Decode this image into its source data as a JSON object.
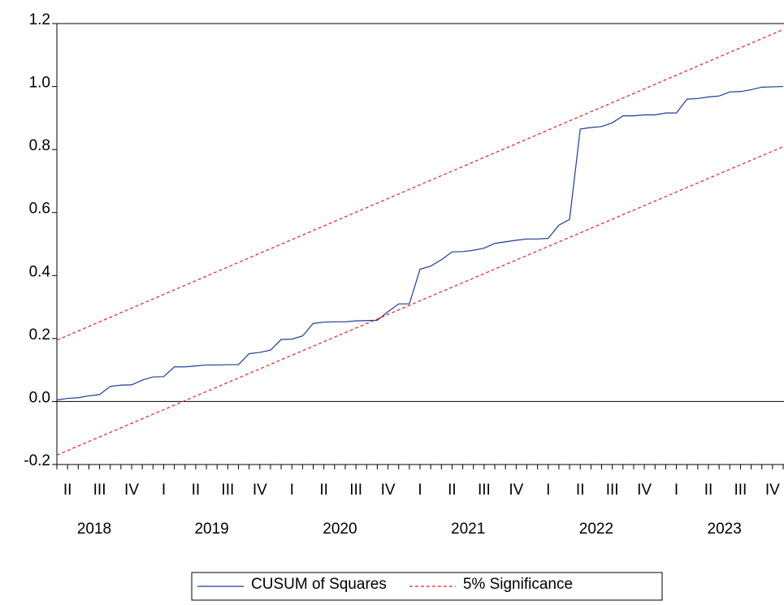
{
  "chart_data": {
    "type": "line",
    "categories": [
      null,
      "II",
      null,
      null,
      "III",
      null,
      null,
      "IV",
      null,
      null,
      "I",
      null,
      null,
      "II",
      null,
      null,
      "III",
      null,
      null,
      "IV",
      null,
      null,
      "I",
      null,
      null,
      "II",
      null,
      null,
      "III",
      null,
      null,
      "IV",
      null,
      null,
      "I",
      null,
      null,
      "II",
      null,
      null,
      "III",
      null,
      null,
      "IV",
      null,
      null,
      "I",
      null,
      null,
      "II",
      null,
      null,
      "III",
      null,
      null,
      "IV",
      null,
      null,
      "I",
      null,
      null,
      "II",
      null,
      null,
      "III",
      null,
      null,
      "IV",
      null
    ],
    "years": [
      null,
      null,
      null,
      "2018",
      null,
      null,
      null,
      null,
      null,
      null,
      null,
      null,
      null,
      null,
      "2019",
      null,
      null,
      null,
      null,
      null,
      null,
      null,
      null,
      null,
      null,
      null,
      "2020",
      null,
      null,
      null,
      null,
      null,
      null,
      null,
      null,
      null,
      null,
      null,
      "2021",
      null,
      null,
      null,
      null,
      null,
      null,
      null,
      null,
      null,
      null,
      null,
      "2022",
      null,
      null,
      null,
      null,
      null,
      null,
      null,
      null,
      null,
      null,
      null,
      "2023",
      null,
      null,
      null,
      null,
      null,
      null
    ],
    "series": [
      {
        "name": "CUSUM of Squares",
        "color": "#1f3c96",
        "dashed": false,
        "values": [
          0.005,
          0.01,
          0.012,
          0.018,
          0.022,
          0.048,
          0.052,
          0.053,
          0.068,
          0.078,
          0.079,
          0.11,
          0.11,
          0.113,
          0.116,
          0.116,
          0.117,
          0.117,
          0.152,
          0.156,
          0.163,
          0.197,
          0.198,
          0.208,
          0.248,
          0.252,
          0.253,
          0.253,
          0.256,
          0.257,
          0.258,
          0.285,
          0.31,
          0.31,
          0.42,
          0.43,
          0.45,
          0.475,
          0.476,
          0.48,
          0.487,
          0.502,
          0.507,
          0.512,
          0.516,
          0.516,
          0.518,
          0.56,
          0.578,
          0.865,
          0.87,
          0.873,
          0.885,
          0.907,
          0.907,
          0.91,
          0.91,
          0.916,
          0.916,
          0.96,
          0.962,
          0.967,
          0.97,
          0.983,
          0.984,
          0.99,
          0.998,
          0.999,
          1.0
        ]
      },
      {
        "name": "5% Significance",
        "color": "#e02424",
        "dashed": true,
        "values": [
          0.195,
          0.2095,
          0.224,
          0.2385,
          0.253,
          0.2675,
          0.282,
          0.2965,
          0.311,
          0.3255,
          0.34,
          0.3545,
          0.369,
          0.3835,
          0.398,
          0.4125,
          0.427,
          0.4415,
          0.456,
          0.4705,
          0.485,
          0.4995,
          0.514,
          0.5285,
          0.543,
          0.5575,
          0.572,
          0.5865,
          0.601,
          0.6155,
          0.63,
          0.6445,
          0.659,
          0.6735,
          0.688,
          0.7025,
          0.717,
          0.7315,
          0.746,
          0.7605,
          0.775,
          0.7895,
          0.804,
          0.8185,
          0.833,
          0.8475,
          0.862,
          0.8765,
          0.891,
          0.9055,
          0.92,
          0.9345,
          0.949,
          0.9635,
          0.978,
          0.9925,
          1.007,
          1.0215,
          1.036,
          1.0505,
          1.065,
          1.0795,
          1.094,
          1.1085,
          1.123,
          1.1375,
          1.152,
          1.1665,
          1.181
        ]
      },
      {
        "color": "#e02424",
        "dashed": true,
        "values": [
          -0.17,
          -0.1556,
          -0.1412,
          -0.1268,
          -0.1124,
          -0.098,
          -0.0836,
          -0.0692,
          -0.0548,
          -0.0404,
          -0.026,
          -0.0116,
          0.0028,
          0.0172,
          0.0316,
          0.046,
          0.0604,
          0.0748,
          0.0892,
          0.1036,
          0.118,
          0.1324,
          0.1468,
          0.1612,
          0.1756,
          0.19,
          0.2044,
          0.2188,
          0.2332,
          0.2476,
          0.262,
          0.2764,
          0.2908,
          0.3052,
          0.3196,
          0.334,
          0.3484,
          0.3628,
          0.3772,
          0.3916,
          0.406,
          0.4204,
          0.4348,
          0.4492,
          0.4636,
          0.478,
          0.4924,
          0.5068,
          0.5212,
          0.5356,
          0.55,
          0.5644,
          0.5788,
          0.5932,
          0.6076,
          0.622,
          0.6364,
          0.6508,
          0.6652,
          0.6796,
          0.694,
          0.7084,
          0.7228,
          0.7372,
          0.7516,
          0.766,
          0.7804,
          0.7948,
          0.8092
        ]
      }
    ],
    "ylim": [
      -0.2,
      1.2
    ],
    "yticks": [
      -0.2,
      {
        "value": 0,
        "label": "0.0"
      },
      0.2,
      0.4,
      0.6,
      0.8,
      {
        "value": 1,
        "label": "1.0"
      },
      1.2
    ],
    "zero_line": true,
    "legend": "bottom"
  }
}
